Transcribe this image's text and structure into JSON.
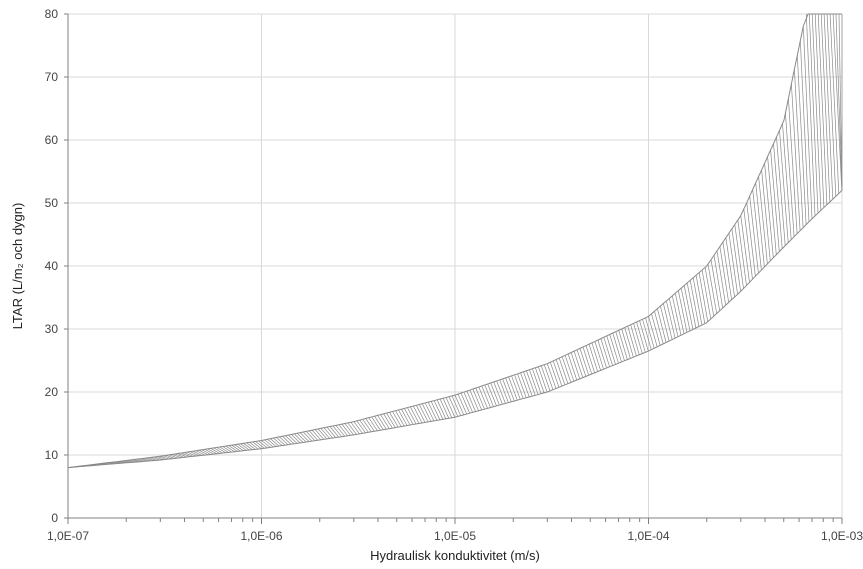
{
  "chart_data": {
    "type": "area",
    "title": "",
    "xlabel": "Hydraulisk konduktivitet (m/s)",
    "ylabel": "LTAR (L/m₂ och dygn)",
    "x_scale": "log",
    "xlim": [
      1e-07,
      0.001
    ],
    "ylim": [
      0,
      80
    ],
    "x_ticks": [
      1e-07,
      1e-06,
      1e-05,
      0.0001,
      0.001
    ],
    "x_tick_labels": [
      "1,0E-07",
      "1,0E-06",
      "1,0E-05",
      "1,0E-04",
      "1,0E-03"
    ],
    "y_ticks": [
      0,
      10,
      20,
      30,
      40,
      50,
      60,
      70,
      80
    ],
    "y_tick_labels": [
      "0",
      "10",
      "20",
      "30",
      "40",
      "50",
      "60",
      "70",
      "80"
    ],
    "grid": true,
    "legend": "none",
    "hatch_color": "#8a8a8a",
    "series": [
      {
        "x": [
          1e-07,
          3e-07,
          1e-06,
          3e-06,
          1e-05,
          3e-05,
          0.0001,
          0.0002,
          0.0003,
          0.0005,
          0.0007,
          0.001
        ],
        "values": [
          8.0,
          9.2,
          11.0,
          13.2,
          16.0,
          20.0,
          26.5,
          31.0,
          36.0,
          43.0,
          47.5,
          52.0
        ]
      },
      {
        "x": [
          1e-07,
          3e-07,
          1e-06,
          3e-06,
          1e-05,
          3e-05,
          0.0001,
          0.0002,
          0.0003,
          0.0005,
          0.00065,
          0.001
        ],
        "values": [
          8.0,
          9.8,
          12.3,
          15.3,
          19.5,
          24.5,
          32.0,
          40.0,
          48.0,
          63.0,
          80.0,
          80.0
        ]
      }
    ]
  }
}
